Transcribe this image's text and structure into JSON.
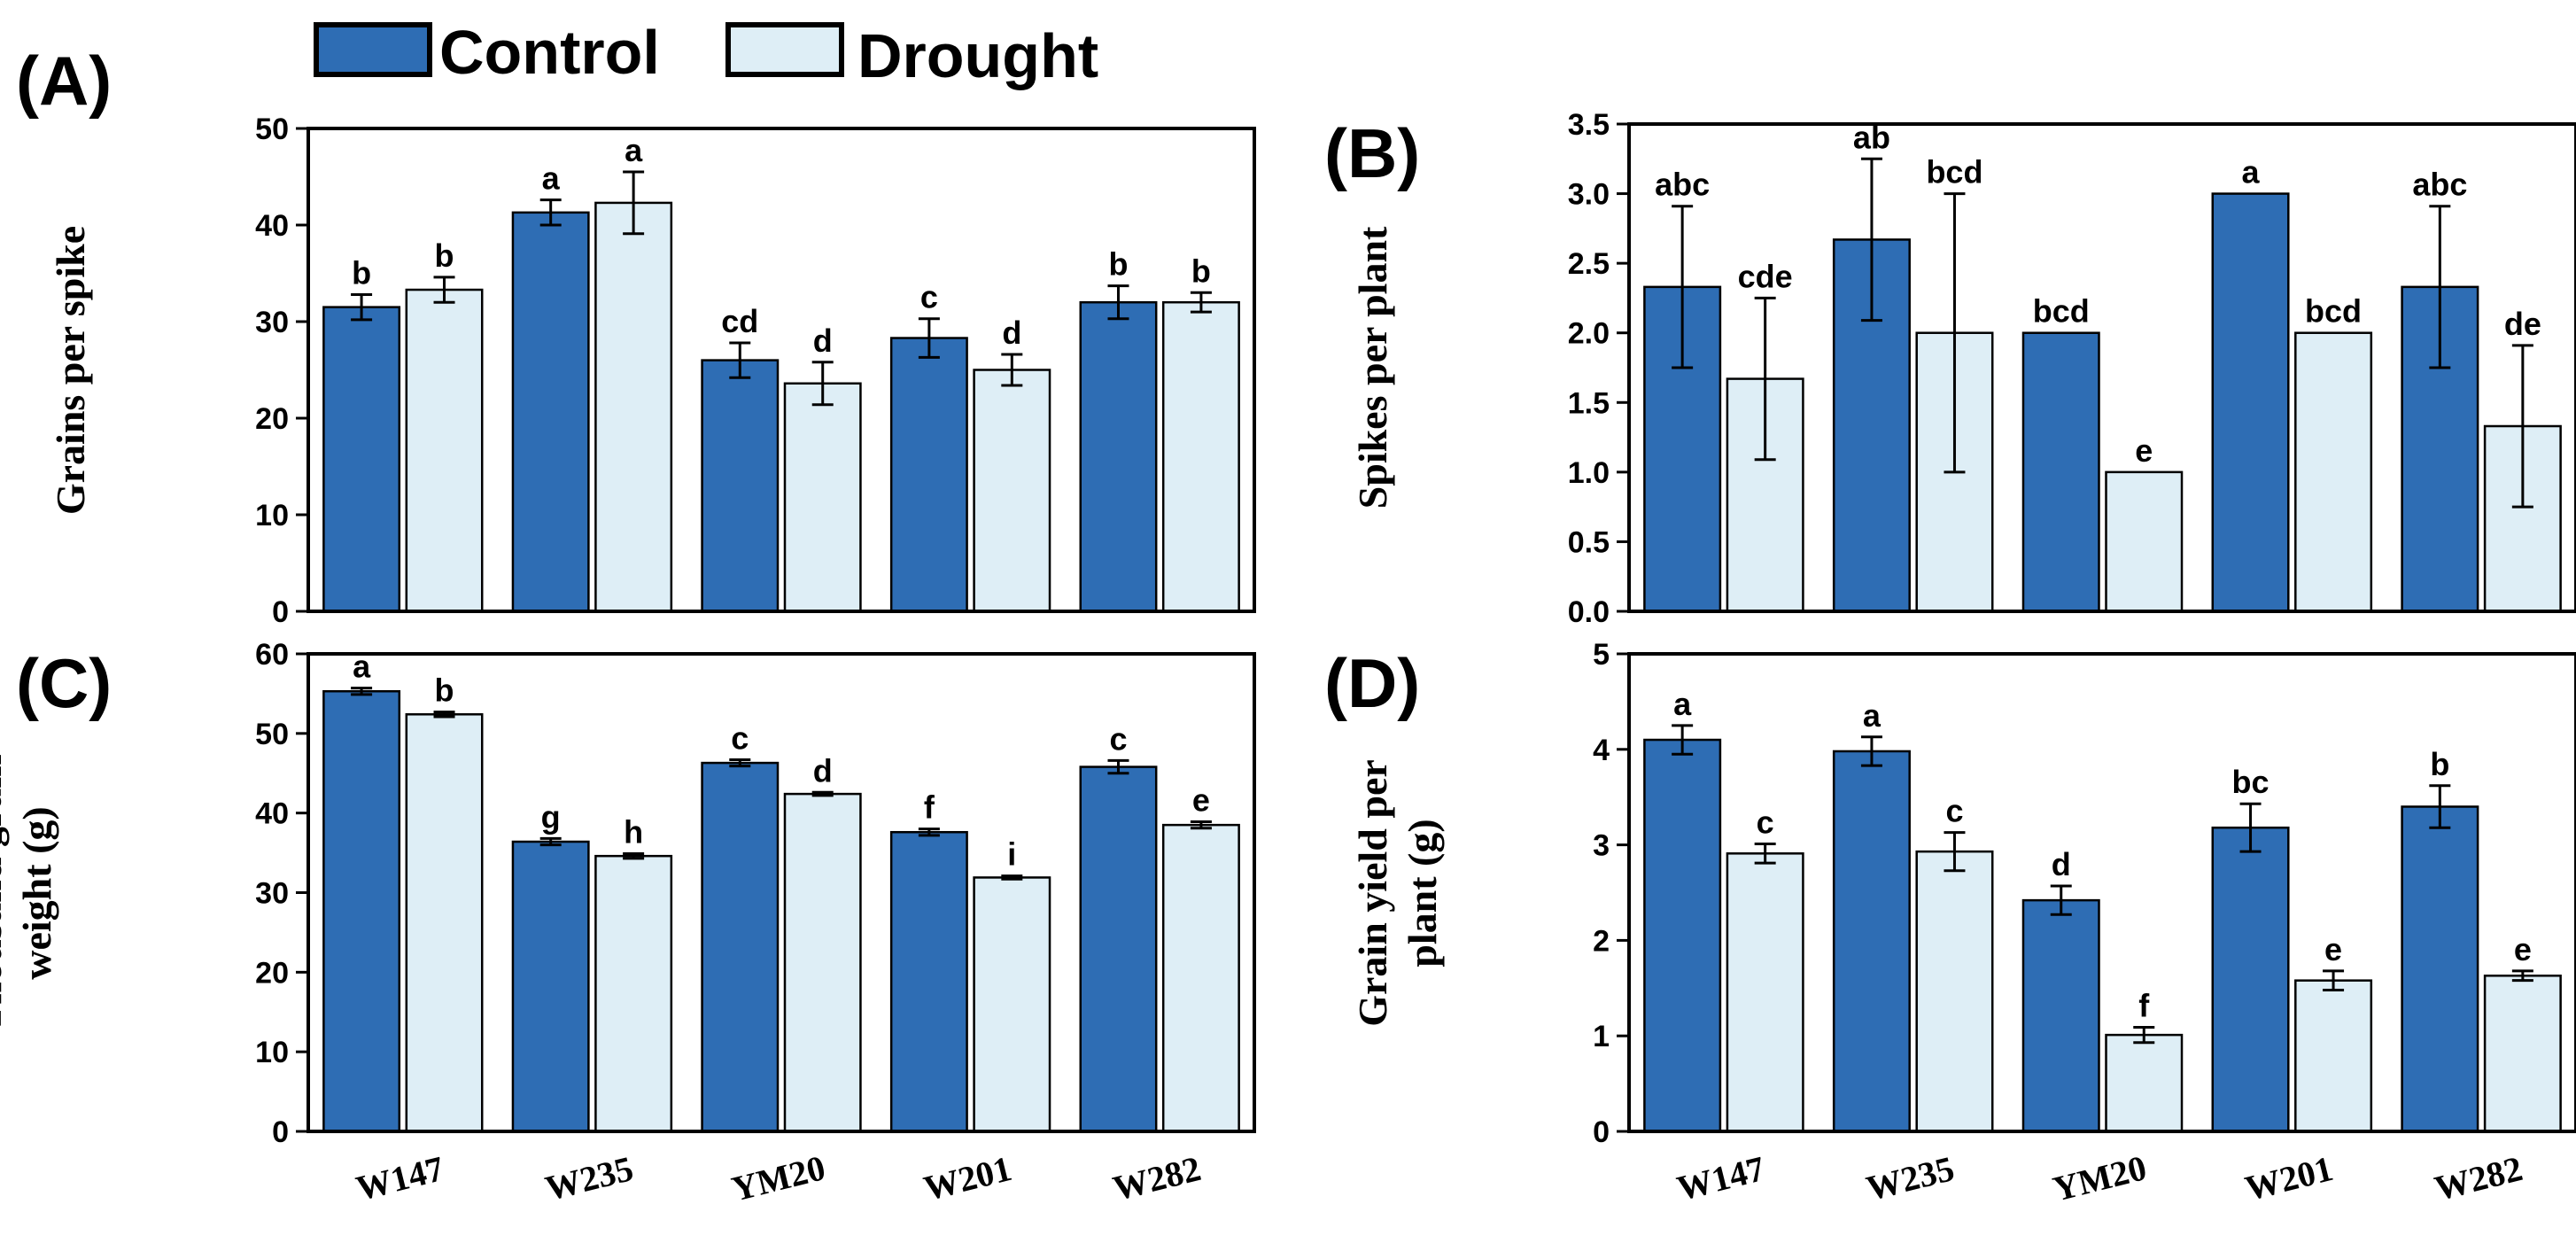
{
  "legend": {
    "items": [
      {
        "name": "Control",
        "color": "#2e6db4"
      },
      {
        "name": "Drought",
        "color": "#deeef6"
      }
    ]
  },
  "chart_data": [
    {
      "type": "bar",
      "panel": "(A)",
      "ylabel": "Grains per spike",
      "categories": [
        "W147",
        "W235",
        "YM20",
        "W201",
        "W282"
      ],
      "ylim": [
        0,
        50
      ],
      "yticks": [
        "0",
        "10",
        "20",
        "30",
        "40",
        "50"
      ],
      "show_xticks": false,
      "series": [
        {
          "name": "Control",
          "values": [
            31.5,
            41.3,
            26.0,
            28.3,
            32.0
          ],
          "errors": [
            1.3,
            1.3,
            1.8,
            2.0,
            1.7
          ],
          "letters": [
            "b",
            "a",
            "cd",
            "c",
            "b"
          ]
        },
        {
          "name": "Drought",
          "values": [
            33.3,
            42.3,
            23.6,
            25.0,
            32.0
          ],
          "errors": [
            1.3,
            3.2,
            2.2,
            1.6,
            1.0
          ],
          "letters": [
            "b",
            "a",
            "d",
            "d",
            "b"
          ]
        }
      ]
    },
    {
      "type": "bar",
      "panel": "(B)",
      "ylabel": "Spikes per plant",
      "categories": [
        "W147",
        "W235",
        "YM20",
        "W201",
        "W282"
      ],
      "ylim": [
        0,
        3.5
      ],
      "yticks": [
        "0.0",
        "0.5",
        "1.0",
        "1.5",
        "2.0",
        "2.5",
        "3.0",
        "3.5"
      ],
      "show_xticks": false,
      "series": [
        {
          "name": "Control",
          "values": [
            2.33,
            2.67,
            2.0,
            3.0,
            2.33
          ],
          "errors": [
            0.58,
            0.58,
            0,
            0,
            0.58
          ],
          "letters": [
            "abc",
            "ab",
            "bcd",
            "a",
            "abc"
          ]
        },
        {
          "name": "Drought",
          "values": [
            1.67,
            2.0,
            1.0,
            2.0,
            1.33
          ],
          "errors": [
            0.58,
            1.0,
            0,
            0,
            0.58
          ],
          "letters": [
            "cde",
            "bcd",
            "e",
            "bcd",
            "de"
          ]
        }
      ]
    },
    {
      "type": "bar",
      "panel": "(C)",
      "ylabel_lines": [
        "Thousand grain",
        "weight (g)"
      ],
      "categories": [
        "W147",
        "W235",
        "YM20",
        "W201",
        "W282"
      ],
      "ylim": [
        0,
        60
      ],
      "yticks": [
        "0",
        "10",
        "20",
        "30",
        "40",
        "50",
        "60"
      ],
      "show_xticks": true,
      "series": [
        {
          "name": "Control",
          "values": [
            55.3,
            36.4,
            46.3,
            37.6,
            45.8
          ],
          "errors": [
            0.4,
            0.4,
            0.4,
            0.4,
            0.8
          ],
          "letters": [
            "a",
            "g",
            "c",
            "f",
            "c"
          ]
        },
        {
          "name": "Drought",
          "values": [
            52.4,
            34.6,
            42.4,
            31.9,
            38.5
          ],
          "errors": [
            0.3,
            0.3,
            0.2,
            0.2,
            0.4
          ],
          "letters": [
            "b",
            "h",
            "d",
            "i",
            "e"
          ]
        }
      ]
    },
    {
      "type": "bar",
      "panel": "(D)",
      "ylabel_lines": [
        "Grain yield per",
        "plant (g)"
      ],
      "categories": [
        "W147",
        "W235",
        "YM20",
        "W201",
        "W282"
      ],
      "ylim": [
        0,
        5
      ],
      "yticks": [
        "0",
        "1",
        "2",
        "3",
        "4",
        "5"
      ],
      "show_xticks": true,
      "series": [
        {
          "name": "Control",
          "values": [
            4.1,
            3.98,
            2.42,
            3.18,
            3.4
          ],
          "errors": [
            0.15,
            0.15,
            0.15,
            0.25,
            0.22
          ],
          "letters": [
            "a",
            "a",
            "d",
            "bc",
            "b"
          ]
        },
        {
          "name": "Drought",
          "values": [
            2.91,
            2.93,
            1.01,
            1.58,
            1.63
          ],
          "errors": [
            0.1,
            0.2,
            0.08,
            0.1,
            0.05
          ],
          "letters": [
            "c",
            "c",
            "f",
            "e",
            "e"
          ]
        }
      ]
    }
  ]
}
